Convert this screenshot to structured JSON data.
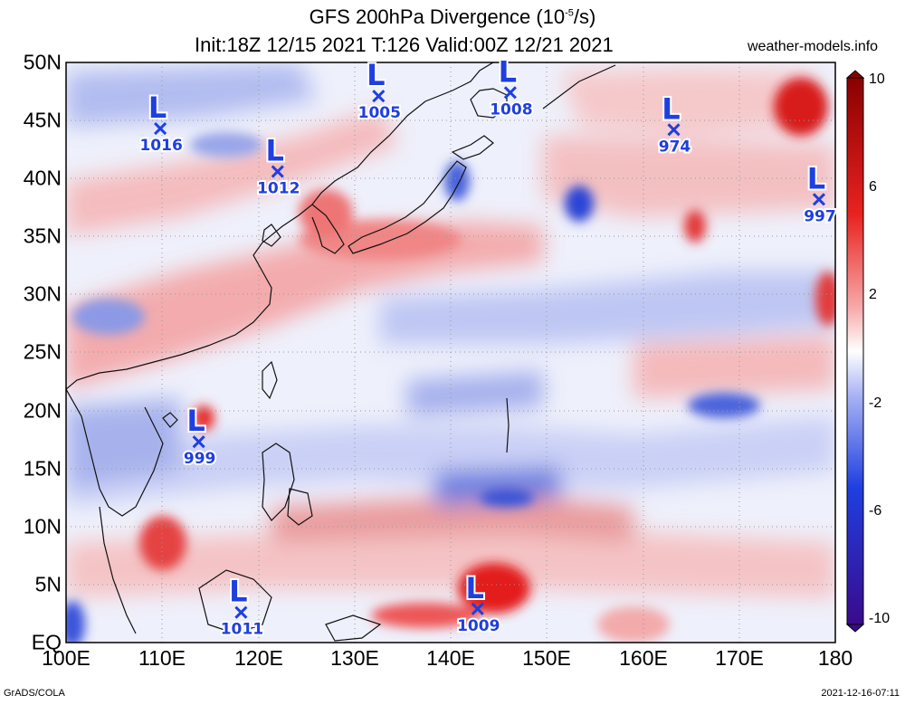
{
  "title": {
    "line1_prefix": "GFS 200hPa Divergence (10",
    "line1_exp": "-5",
    "line1_suffix": "/s)",
    "line2": "Init:18Z 12/15 2021 T:126 Valid:00Z 12/21 2021"
  },
  "site": "weather-models.info",
  "footer_left": "GrADS/COLA",
  "footer_right": "2021-12-16-07:11",
  "lat_labels": [
    "50N",
    "45N",
    "40N",
    "35N",
    "30N",
    "25N",
    "20N",
    "15N",
    "10N",
    "5N",
    "EQ"
  ],
  "lon_labels": [
    "100E",
    "110E",
    "120E",
    "130E",
    "140E",
    "150E",
    "160E",
    "170E",
    "180"
  ],
  "colorbar": {
    "labels": [
      "10",
      "6",
      "2",
      "-2",
      "-6",
      "-10"
    ],
    "range": [
      -10,
      10
    ],
    "colors": {
      "max": "#8b0000",
      "pos": "#e8231f",
      "zero": "#ffffff",
      "neg": "#1f3fe0",
      "min": "#3a0a8c"
    }
  },
  "lows": [
    {
      "lon": 109.8,
      "lat": 44.3,
      "pressure": "1016"
    },
    {
      "lon": 122.0,
      "lat": 40.6,
      "pressure": "1012"
    },
    {
      "lon": 132.5,
      "lat": 47.1,
      "pressure": "1005"
    },
    {
      "lon": 146.2,
      "lat": 47.4,
      "pressure": "1008"
    },
    {
      "lon": 163.2,
      "lat": 44.2,
      "pressure": "974"
    },
    {
      "lon": 178.3,
      "lat": 38.2,
      "pressure": "997"
    },
    {
      "lon": 113.8,
      "lat": 17.3,
      "pressure": "999"
    },
    {
      "lon": 118.2,
      "lat": 2.6,
      "pressure": "1011"
    },
    {
      "lon": 142.8,
      "lat": 2.9,
      "pressure": "1009"
    }
  ]
}
